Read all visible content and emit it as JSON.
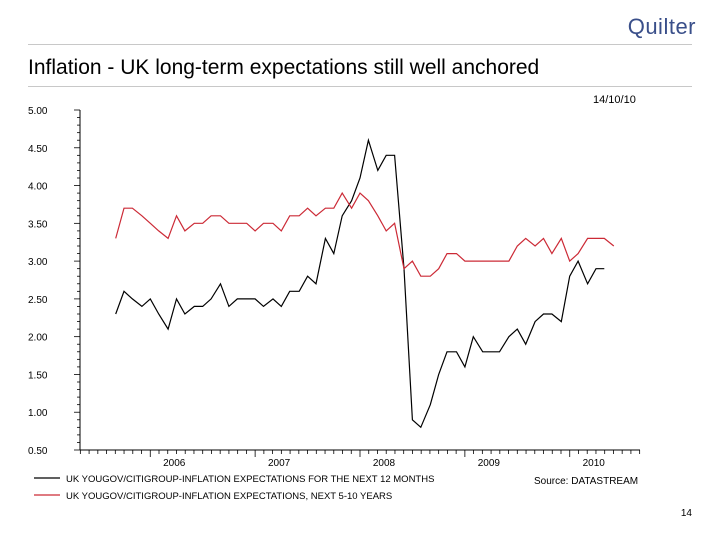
{
  "header": {
    "logo_text": "Quilter",
    "title": "Inflation - UK long-term expectations still well anchored",
    "date": "14/10/10"
  },
  "footer": {
    "source": "Source: DATASTREAM",
    "page_number": "14"
  },
  "colors": {
    "series_short": "#000000",
    "series_long": "#cc2a36",
    "logo": "#3a4f8a"
  },
  "chart_data": {
    "type": "line",
    "title": "",
    "xlabel": "",
    "ylabel": "",
    "x_range": [
      2005.33,
      2010.67
    ],
    "ylim": [
      0.5,
      5.0
    ],
    "y_ticks": [
      "5.00",
      "4.50",
      "4.00",
      "3.50",
      "3.00",
      "2.50",
      "2.00",
      "1.50",
      "1.00",
      "0.50"
    ],
    "x_tick_labels": [
      "2006",
      "2007",
      "2008",
      "2009",
      "2010"
    ],
    "x_tick_values": [
      2006,
      2007,
      2008,
      2009,
      2010
    ],
    "grid": false,
    "legend_position": "bottom-left",
    "x": [
      2005.67,
      2005.75,
      2005.83,
      2005.92,
      2006.0,
      2006.08,
      2006.17,
      2006.25,
      2006.33,
      2006.42,
      2006.5,
      2006.58,
      2006.67,
      2006.75,
      2006.83,
      2006.92,
      2007.0,
      2007.08,
      2007.17,
      2007.25,
      2007.33,
      2007.42,
      2007.5,
      2007.58,
      2007.67,
      2007.75,
      2007.83,
      2007.92,
      2008.0,
      2008.08,
      2008.17,
      2008.25,
      2008.33,
      2008.42,
      2008.5,
      2008.58,
      2008.67,
      2008.75,
      2008.83,
      2008.92,
      2009.0,
      2009.08,
      2009.17,
      2009.25,
      2009.33,
      2009.42,
      2009.5,
      2009.58,
      2009.67,
      2009.75,
      2009.83,
      2009.92,
      2010.0,
      2010.08,
      2010.17,
      2010.25,
      2010.33,
      2010.42,
      2010.5
    ],
    "series": [
      {
        "name": "UK YOUGOV/CITIGROUP-INFLATION EXPECTATIONS FOR THE NEXT 12 MONTHS",
        "values": [
          2.3,
          2.6,
          2.5,
          2.4,
          2.5,
          2.3,
          2.1,
          2.5,
          2.3,
          2.4,
          2.4,
          2.5,
          2.7,
          2.4,
          2.5,
          2.5,
          2.5,
          2.4,
          2.5,
          2.4,
          2.6,
          2.6,
          2.8,
          2.7,
          3.3,
          3.1,
          3.6,
          3.8,
          4.1,
          4.6,
          4.2,
          4.4,
          4.4,
          2.9,
          0.9,
          0.8,
          1.1,
          1.5,
          1.8,
          1.8,
          1.6,
          2.0,
          1.8,
          1.8,
          1.8,
          2.0,
          2.1,
          1.9,
          2.2,
          2.3,
          2.3,
          2.2,
          2.8,
          3.0,
          2.7,
          2.9,
          2.9,
          null,
          null
        ]
      },
      {
        "name": "UK YOUGOV/CITIGROUP-INFLATION EXPECTATIONS, NEXT 5-10 YEARS",
        "values": [
          3.3,
          3.7,
          3.7,
          3.6,
          3.5,
          3.4,
          3.3,
          3.6,
          3.4,
          3.5,
          3.5,
          3.6,
          3.6,
          3.5,
          3.5,
          3.5,
          3.4,
          3.5,
          3.5,
          3.4,
          3.6,
          3.6,
          3.7,
          3.6,
          3.7,
          3.7,
          3.9,
          3.7,
          3.9,
          3.8,
          3.6,
          3.4,
          3.5,
          2.9,
          3.0,
          2.8,
          2.8,
          2.9,
          3.1,
          3.1,
          3.0,
          3.0,
          3.0,
          3.0,
          3.0,
          3.0,
          3.2,
          3.3,
          3.2,
          3.3,
          3.1,
          3.3,
          3.0,
          3.1,
          3.3,
          3.3,
          3.3,
          3.2,
          null
        ]
      }
    ]
  }
}
